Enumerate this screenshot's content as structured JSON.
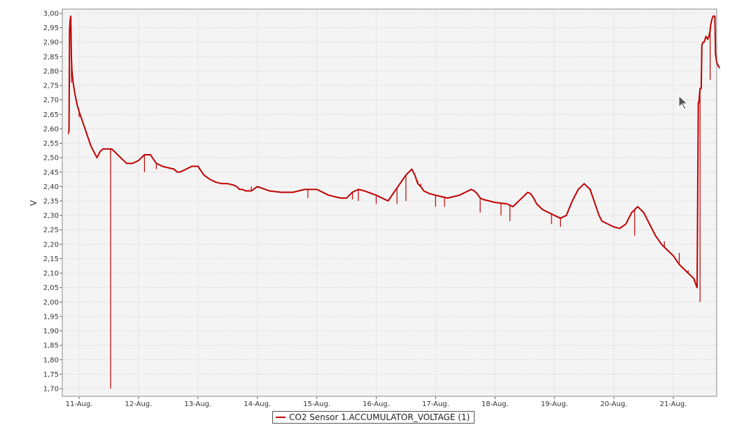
{
  "chart_data": {
    "type": "line",
    "ylabel": "V",
    "xlabel": "",
    "title": "",
    "ylim": [
      1.68,
      3.01
    ],
    "xlim": [
      10.77,
      21.8
    ],
    "y_ticks": [
      "3,00",
      "2,95",
      "2,90",
      "2,85",
      "2,80",
      "2,75",
      "2,70",
      "2,65",
      "2,60",
      "2,55",
      "2,50",
      "2,45",
      "2,40",
      "2,35",
      "2,30",
      "2,25",
      "2,20",
      "2,15",
      "2,10",
      "2,05",
      "2,00",
      "1,95",
      "1,90",
      "1,85",
      "1,80",
      "1,75",
      "1,70"
    ],
    "x_ticks": [
      "11-Aug.",
      "12-Aug.",
      "13-Aug.",
      "14-Aug.",
      "15-Aug.",
      "16-Aug.",
      "17-Aug.",
      "18-Aug.",
      "19-Aug.",
      "20-Aug.",
      "21-Aug."
    ],
    "grid": true,
    "legend_position": "bottom-center",
    "series": [
      {
        "name": "CO2 Sensor 1.ACCUMULATOR_VOLTAGE (1)",
        "color": "#c00000",
        "x": [
          10.82,
          10.83,
          10.84,
          10.845,
          10.85,
          10.86,
          10.87,
          10.88,
          10.9,
          10.93,
          10.97,
          11.0,
          11.05,
          11.1,
          11.15,
          11.2,
          11.25,
          11.3,
          11.35,
          11.4,
          11.45,
          11.5,
          11.55,
          11.6,
          11.65,
          11.7,
          11.75,
          11.8,
          11.9,
          12.0,
          12.1,
          12.2,
          12.3,
          12.4,
          12.5,
          12.6,
          12.65,
          12.7,
          12.8,
          12.9,
          13.0,
          13.1,
          13.2,
          13.3,
          13.4,
          13.45,
          13.5,
          13.6,
          13.65,
          13.7,
          13.75,
          13.8,
          13.9,
          14.0,
          14.2,
          14.4,
          14.6,
          14.8,
          15.0,
          15.2,
          15.4,
          15.5,
          15.6,
          15.7,
          15.8,
          16.0,
          16.2,
          16.3,
          16.4,
          16.5,
          16.6,
          16.65,
          16.7,
          16.75,
          16.8,
          16.9,
          17.0,
          17.2,
          17.4,
          17.5,
          17.6,
          17.65,
          17.7,
          17.75,
          17.8,
          18.0,
          18.2,
          18.3,
          18.4,
          18.5,
          18.55,
          18.6,
          18.65,
          18.7,
          18.8,
          18.9,
          19.0,
          19.1,
          19.2,
          19.3,
          19.4,
          19.5,
          19.6,
          19.65,
          19.7,
          19.75,
          19.8,
          19.9,
          20.0,
          20.1,
          20.2,
          20.3,
          20.4,
          20.5,
          20.55,
          20.6,
          20.65,
          20.7,
          20.75,
          20.8,
          20.9,
          21.0,
          21.1,
          21.2,
          21.3,
          21.35,
          21.38,
          21.4,
          21.42,
          21.43,
          21.45,
          21.47,
          21.48,
          21.5,
          21.52,
          21.55,
          21.58,
          21.6,
          21.62,
          21.63,
          21.65,
          21.67,
          21.7,
          21.71,
          21.73,
          21.75,
          21.78
        ],
        "y": [
          2.59,
          2.59,
          2.94,
          2.96,
          2.98,
          2.99,
          2.85,
          2.8,
          2.76,
          2.72,
          2.68,
          2.66,
          2.63,
          2.6,
          2.57,
          2.54,
          2.52,
          2.5,
          2.52,
          2.53,
          2.53,
          2.53,
          2.53,
          2.52,
          2.51,
          2.5,
          2.49,
          2.48,
          2.48,
          2.49,
          2.51,
          2.51,
          2.48,
          2.47,
          2.465,
          2.46,
          2.45,
          2.45,
          2.46,
          2.47,
          2.47,
          2.44,
          2.425,
          2.415,
          2.41,
          2.41,
          2.41,
          2.405,
          2.4,
          2.39,
          2.39,
          2.385,
          2.385,
          2.4,
          2.385,
          2.38,
          2.38,
          2.39,
          2.39,
          2.37,
          2.36,
          2.36,
          2.38,
          2.39,
          2.385,
          2.37,
          2.35,
          2.38,
          2.41,
          2.44,
          2.46,
          2.44,
          2.41,
          2.4,
          2.385,
          2.375,
          2.37,
          2.36,
          2.37,
          2.38,
          2.39,
          2.385,
          2.375,
          2.36,
          2.355,
          2.345,
          2.34,
          2.33,
          2.35,
          2.37,
          2.38,
          2.375,
          2.36,
          2.34,
          2.32,
          2.31,
          2.3,
          2.29,
          2.3,
          2.35,
          2.39,
          2.41,
          2.39,
          2.36,
          2.33,
          2.3,
          2.28,
          2.27,
          2.26,
          2.255,
          2.27,
          2.31,
          2.33,
          2.31,
          2.29,
          2.27,
          2.25,
          2.23,
          2.215,
          2.2,
          2.18,
          2.16,
          2.13,
          2.11,
          2.09,
          2.08,
          2.06,
          2.05,
          2.69,
          2.69,
          2.74,
          2.74,
          2.89,
          2.9,
          2.9,
          2.92,
          2.91,
          2.92,
          2.94,
          2.96,
          2.98,
          2.99,
          2.99,
          2.86,
          2.83,
          2.82,
          2.81
        ],
        "spikes": [
          [
            10.82,
            2.58
          ],
          [
            10.87,
            2.76
          ],
          [
            11.0,
            2.64
          ],
          [
            11.53,
            2.51
          ],
          [
            11.53,
            1.7
          ],
          [
            11.7,
            2.5
          ],
          [
            12.1,
            2.45
          ],
          [
            12.3,
            2.46
          ],
          [
            13.9,
            2.4
          ],
          [
            14.85,
            2.36
          ],
          [
            15.6,
            2.355
          ],
          [
            15.7,
            2.35
          ],
          [
            16.0,
            2.34
          ],
          [
            16.35,
            2.34
          ],
          [
            16.5,
            2.35
          ],
          [
            16.7,
            2.42
          ],
          [
            16.75,
            2.41
          ],
          [
            17.0,
            2.33
          ],
          [
            17.15,
            2.33
          ],
          [
            17.75,
            2.31
          ],
          [
            18.1,
            2.3
          ],
          [
            18.25,
            2.28
          ],
          [
            18.95,
            2.27
          ],
          [
            19.1,
            2.26
          ],
          [
            20.35,
            2.23
          ],
          [
            20.85,
            2.21
          ],
          [
            21.1,
            2.17
          ],
          [
            21.25,
            2.11
          ],
          [
            21.35,
            2.07
          ],
          [
            21.45,
            2.0
          ],
          [
            21.62,
            2.77
          ]
        ]
      }
    ]
  }
}
